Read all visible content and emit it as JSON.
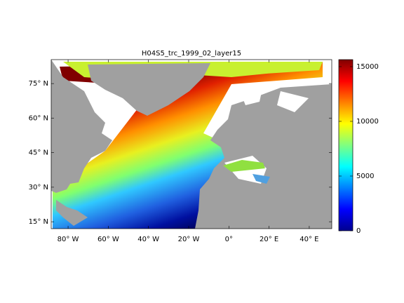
{
  "title": "H04S5_trc_1999_02_layer15",
  "map": {
    "xlim": [
      -88.4,
      51.2
    ],
    "ylim": [
      12,
      85.4
    ],
    "lon_ticks": [
      {
        "value": -80,
        "label": "80° W"
      },
      {
        "value": -60,
        "label": "60° W"
      },
      {
        "value": -40,
        "label": "40° W"
      },
      {
        "value": -20,
        "label": "20° W"
      },
      {
        "value": 0,
        "label": "0°"
      },
      {
        "value": 20,
        "label": "20° E"
      },
      {
        "value": 40,
        "label": "40° E"
      }
    ],
    "lat_ticks": [
      {
        "value": 15,
        "label": "15° N"
      },
      {
        "value": 30,
        "label": "30° N"
      },
      {
        "value": 45,
        "label": "45° N"
      },
      {
        "value": 60,
        "label": "60° N"
      },
      {
        "value": 75,
        "label": "75° N"
      }
    ]
  },
  "colorbar": {
    "colormap": "jet",
    "clim": [
      0,
      15640
    ],
    "ticks": [
      0,
      5000,
      10000,
      15000
    ]
  }
}
